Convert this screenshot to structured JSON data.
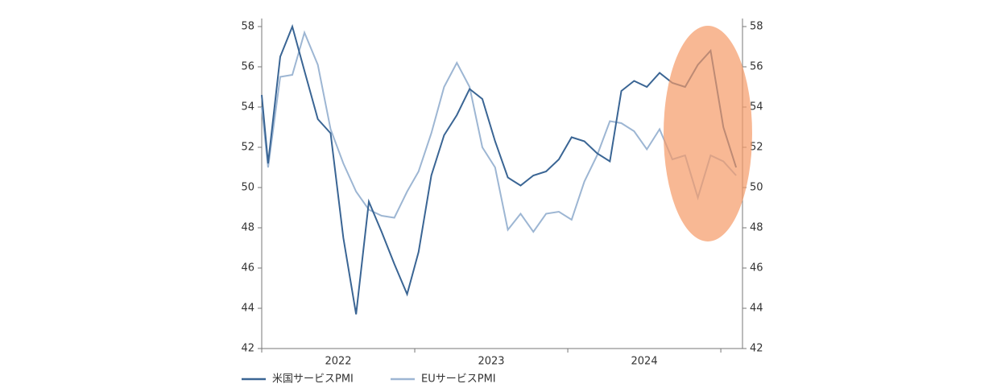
{
  "chart_data": {
    "type": "line",
    "x": [
      0,
      0.5,
      1.45,
      2.4,
      3.35,
      4.4,
      5.4,
      6.4,
      7.4,
      8.4,
      9.4,
      10.4,
      11.4,
      12.3,
      13.3,
      14.3,
      15.3,
      16.3,
      17.3,
      18.3,
      19.3,
      20.3,
      21.3,
      22.3,
      23.3,
      24.3,
      25.3,
      26.3,
      27.3,
      28.2,
      29.2,
      30.2,
      31.2,
      32.2,
      33.2,
      34.2,
      35.2,
      36.2,
      37.2
    ],
    "series": [
      {
        "name": "米国サービスPMI",
        "color": "#3a6594",
        "values": [
          54.6,
          51.2,
          56.5,
          58.0,
          55.8,
          53.4,
          52.7,
          47.5,
          43.7,
          49.3,
          47.8,
          46.2,
          44.7,
          46.8,
          50.6,
          52.6,
          53.6,
          54.9,
          54.4,
          52.3,
          50.5,
          50.1,
          50.6,
          50.8,
          51.4,
          52.5,
          52.3,
          51.7,
          51.3,
          54.8,
          55.3,
          55.0,
          55.7,
          55.2,
          55.0,
          56.1,
          56.8,
          53.0,
          51.0
        ]
      },
      {
        "name": "EUサービスPMI",
        "color": "#9db6d3",
        "values": [
          54.0,
          51.0,
          55.5,
          55.6,
          57.7,
          56.1,
          52.9,
          51.2,
          49.8,
          48.9,
          48.6,
          48.5,
          49.8,
          50.8,
          52.7,
          55.0,
          56.2,
          55.0,
          52.0,
          51.0,
          47.9,
          48.7,
          47.8,
          48.7,
          48.8,
          48.4,
          50.3,
          51.6,
          53.3,
          53.2,
          52.8,
          51.9,
          52.9,
          51.4,
          51.6,
          49.5,
          51.6,
          51.3,
          50.6
        ]
      }
    ],
    "xlim": [
      0,
      37.7
    ],
    "xticks": [
      0,
      12,
      24,
      36
    ],
    "xlabels": [
      {
        "value": 6,
        "label": "2022"
      },
      {
        "value": 18,
        "label": "2023"
      },
      {
        "value": 30,
        "label": "2024"
      }
    ],
    "ylim": [
      42,
      58.4
    ],
    "yticks": [
      42,
      44,
      46,
      48,
      50,
      52,
      54,
      56,
      58
    ],
    "y2lim": [
      42,
      58.4
    ],
    "y2ticks": [
      42,
      44,
      46,
      48,
      50,
      52,
      54,
      56,
      58
    ]
  }
}
